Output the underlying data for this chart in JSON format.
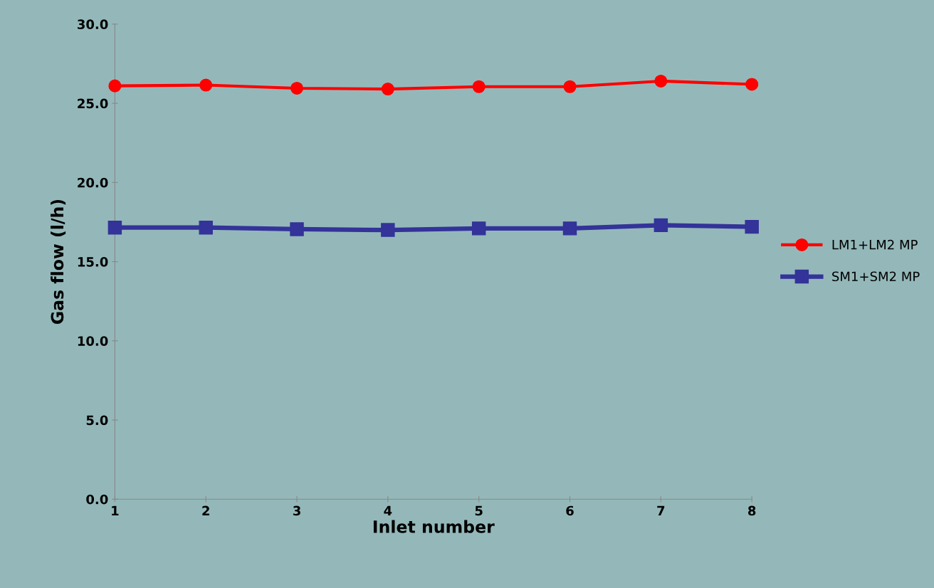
{
  "chart_data": {
    "type": "line",
    "xlabel": "Inlet number",
    "ylabel": "Gas flow (l/h)",
    "x": [
      1,
      2,
      3,
      4,
      5,
      6,
      7,
      8
    ],
    "series": [
      {
        "name": "LM1+LM2 MP",
        "color": "#ff0000",
        "marker": "circle",
        "values": [
          26.1,
          26.15,
          25.95,
          25.9,
          26.05,
          26.05,
          26.4,
          26.2
        ]
      },
      {
        "name": "SM1+SM2 MP",
        "color": "#333399",
        "marker": "square",
        "values": [
          17.15,
          17.15,
          17.05,
          17.0,
          17.1,
          17.1,
          17.3,
          17.2
        ]
      }
    ],
    "xlim": [
      1,
      8
    ],
    "xticks": [
      1,
      2,
      3,
      4,
      5,
      6,
      7,
      8
    ],
    "ylim": [
      0,
      30
    ],
    "yticks": [
      {
        "value": 0,
        "label": "0.0"
      },
      {
        "value": 5,
        "label": "5.0"
      },
      {
        "value": 10,
        "label": "10.0"
      },
      {
        "value": 15,
        "label": "15.0"
      },
      {
        "value": 20,
        "label": "20.0"
      },
      {
        "value": 25,
        "label": "25.0"
      },
      {
        "value": 30,
        "label": "30.0"
      }
    ],
    "grid": false,
    "legend": "right",
    "line_style": "solid"
  }
}
